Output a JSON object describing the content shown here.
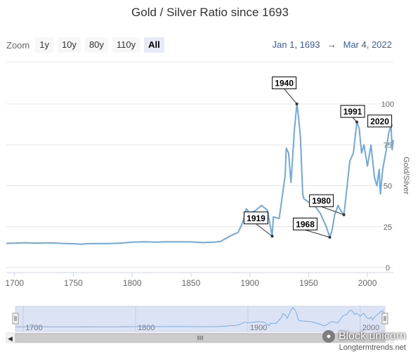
{
  "page": {
    "source": "Longtermtrends.net",
    "watermark": "Block unicorn"
  },
  "zoom": {
    "label": "Zoom",
    "buttons": [
      "1y",
      "10y",
      "80y",
      "110y",
      "All"
    ],
    "active": "All"
  },
  "range": {
    "from": "Jan 1, 1693",
    "arrow": "→",
    "to": "Mar 4, 2022"
  },
  "colors": {
    "line": "#6fa8dc",
    "navigator_fill": "#dce3f5",
    "grid": "#e6e6e6"
  },
  "chart_data": {
    "type": "line",
    "title": "Gold / Silver Ratio since 1693",
    "ylabel": "Gold/Silver",
    "xlim": [
      1693,
      2022
    ],
    "ylim": [
      0,
      100
    ],
    "yticks": [
      0,
      25,
      50,
      75,
      100
    ],
    "xticks": [
      1700,
      1750,
      1800,
      1850,
      1900,
      1950,
      2000
    ],
    "navigator_xticks": [
      1700,
      1800,
      1900,
      2000
    ],
    "grid": true,
    "series": [
      {
        "x": [
          1693,
          1700,
          1710,
          1720,
          1730,
          1740,
          1750,
          1757,
          1760,
          1770,
          1780,
          1790,
          1800,
          1810,
          1820,
          1830,
          1840,
          1850,
          1860,
          1870,
          1875,
          1880,
          1885,
          1890,
          1893,
          1895,
          1897,
          1900,
          1905,
          1910,
          1915,
          1919,
          1920,
          1925,
          1930,
          1931,
          1933,
          1935,
          1938,
          1940,
          1941,
          1943,
          1945,
          1946,
          1950,
          1955,
          1960,
          1965,
          1968,
          1970,
          1972,
          1975,
          1977,
          1980,
          1982,
          1985,
          1988,
          1991,
          1993,
          1995,
          1997,
          2000,
          2003,
          2006,
          2008,
          2010,
          2011,
          2013,
          2016,
          2018,
          2020,
          2021,
          2022
        ],
        "values": [
          14.8,
          15,
          15.2,
          15,
          15.1,
          14.8,
          14.6,
          14.3,
          14.6,
          14.7,
          14.7,
          15,
          15.6,
          15.8,
          15.6,
          15.8,
          15.8,
          15.7,
          15.3,
          15.6,
          16,
          18,
          20,
          21.5,
          26,
          30,
          36,
          33,
          35,
          38,
          35,
          19.2,
          31,
          30,
          56,
          73,
          70,
          52,
          85,
          100,
          95,
          80,
          45,
          42,
          40,
          38,
          33,
          25,
          18.5,
          23,
          32,
          38,
          35,
          32.3,
          45,
          65,
          70,
          89,
          85,
          70,
          75,
          62,
          75,
          55,
          50,
          60,
          45,
          60,
          72,
          82,
          87,
          72,
          78
        ]
      }
    ],
    "annotations": [
      {
        "label": "1940",
        "x": 1940,
        "y": 100
      },
      {
        "label": "1991",
        "x": 1991,
        "y": 89
      },
      {
        "label": "2020",
        "x": 2020,
        "y": 87
      },
      {
        "label": "1980",
        "x": 1980,
        "y": 32.3
      },
      {
        "label": "1919",
        "x": 1919,
        "y": 19.2
      },
      {
        "label": "1968",
        "x": 1968,
        "y": 18.5
      }
    ]
  }
}
